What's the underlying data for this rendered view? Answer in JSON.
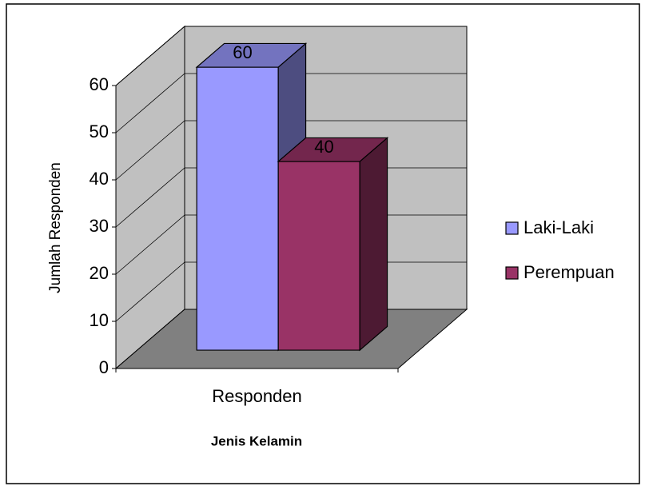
{
  "chart_data": {
    "type": "bar3d",
    "categories": [
      "Responden"
    ],
    "series": [
      {
        "name": "Laki-Laki",
        "color": "#9999ff",
        "values": [
          60
        ]
      },
      {
        "name": "Perempuan",
        "color": "#993366",
        "values": [
          40
        ]
      }
    ],
    "ylim": [
      0,
      60
    ],
    "yticks": [
      0,
      10,
      20,
      30,
      40,
      50,
      60
    ],
    "y_axis_label": "Jumlah Responden",
    "x_axis_label": "Jenis Kelamin",
    "grid": true,
    "legend": "right"
  }
}
